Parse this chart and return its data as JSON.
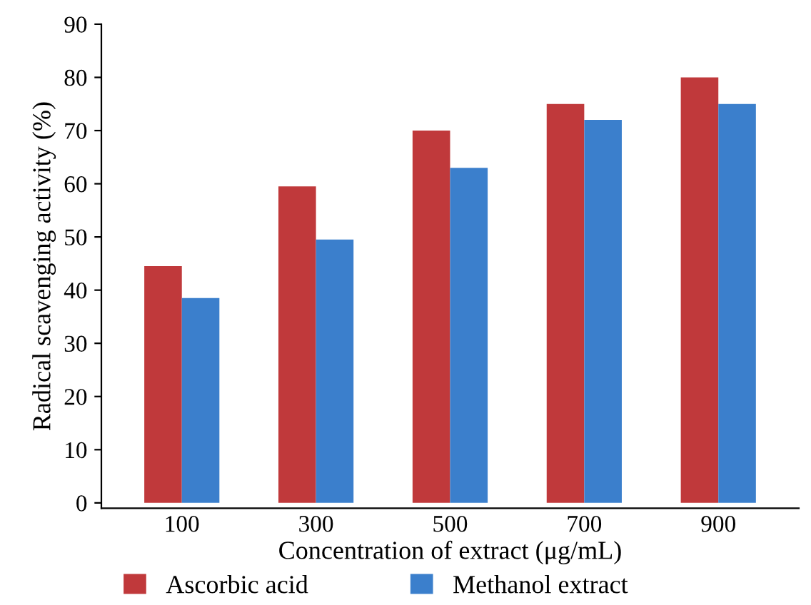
{
  "chart_data": {
    "type": "bar",
    "xlabel": "Concentration of extract (μg/mL)",
    "ylabel": "Radical scavenging activity (%)",
    "categories": [
      "100",
      "300",
      "500",
      "700",
      "900"
    ],
    "series": [
      {
        "name": "Ascorbic acid",
        "color": "#c0393b",
        "values": [
          44.5,
          59.5,
          70,
          75,
          80
        ]
      },
      {
        "name": "Methanol extract",
        "color": "#3b7fcc",
        "values": [
          38.5,
          49.5,
          63,
          72,
          75
        ]
      }
    ],
    "ylim": [
      -1,
      90
    ],
    "yticks": [
      0,
      10,
      20,
      30,
      40,
      50,
      60,
      70,
      80,
      90
    ],
    "grid": false,
    "legend": "bottom"
  }
}
